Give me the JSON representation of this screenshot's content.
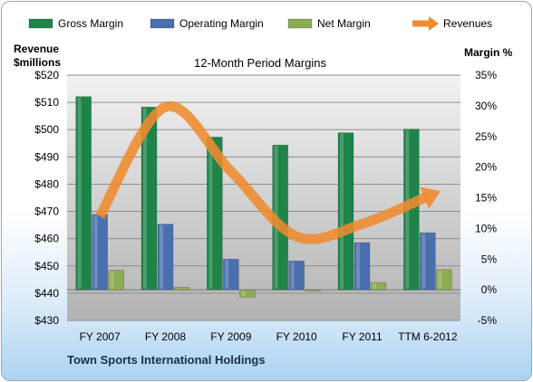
{
  "chart_data": {
    "type": "bar",
    "title": "12-Month Period Margins",
    "company": "Town Sports International Holdings",
    "categories": [
      "FY 2007",
      "FY 2008",
      "FY 2009",
      "FY 2010",
      "FY 2011",
      "TTM 6-2012"
    ],
    "left_axis": {
      "label_line1": "Revenue",
      "label_line2": "$millions",
      "range": [
        430,
        520
      ],
      "ticks": [
        430,
        440,
        450,
        460,
        470,
        480,
        490,
        500,
        510,
        520
      ],
      "tick_labels": [
        "$430",
        "$440",
        "$450",
        "$460",
        "$470",
        "$480",
        "$490",
        "$500",
        "$510",
        "$520"
      ]
    },
    "right_axis": {
      "label": "Margin %",
      "range": [
        -5,
        35
      ],
      "ticks": [
        -5,
        0,
        5,
        10,
        15,
        20,
        25,
        30,
        35
      ],
      "tick_labels": [
        "-5%",
        "0%",
        "5%",
        "10%",
        "15%",
        "20%",
        "25%",
        "30%",
        "35%"
      ]
    },
    "series": [
      {
        "name": "Gross Margin",
        "kind": "bar",
        "axis": "right",
        "color": "#1e8449",
        "values": [
          31.5,
          29.8,
          24.9,
          23.6,
          25.6,
          26.2
        ]
      },
      {
        "name": "Operating Margin",
        "kind": "bar",
        "axis": "right",
        "color": "#4a6fae",
        "values": [
          12.3,
          10.7,
          5.0,
          4.7,
          7.7,
          9.3
        ]
      },
      {
        "name": "Net Margin",
        "kind": "bar",
        "axis": "right",
        "color": "#8cab53",
        "values": [
          3.2,
          0.4,
          -1.2,
          -0.2,
          1.2,
          3.3
        ]
      },
      {
        "name": "Revenues",
        "kind": "line",
        "axis": "left",
        "color": "#ef8b2e",
        "values": [
          468.2,
          508.3,
          484.7,
          460.8,
          465.4,
          475.5
        ]
      }
    ],
    "grid": true,
    "legend_position": "top"
  }
}
